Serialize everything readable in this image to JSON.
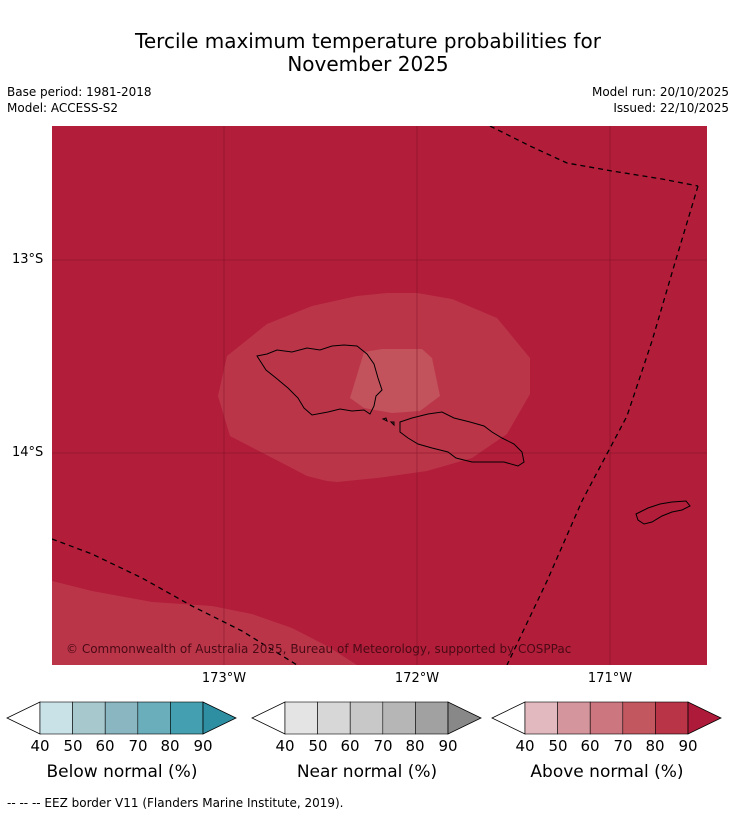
{
  "title_line1": "Tercile maximum temperature probabilities for",
  "title_line2": "November 2025",
  "base_period": "Base period: 1981-2018",
  "model": "Model: ACCESS-S2",
  "model_run": "Model run: 20/10/2025",
  "issued": "Issued: 22/10/2025",
  "lat_labels": [
    "13°S",
    "14°S"
  ],
  "lon_labels": [
    "173°W",
    "172°W",
    "171°W"
  ],
  "copyright": "© Commonwealth of Australia 2025, Bureau of Meteorology, supported by COSPPac",
  "colors": {
    "above_90": "#b21d3a",
    "above_80": "#bb3549",
    "above_70": "#c2525c",
    "land": "#000000",
    "eez": "#000000"
  },
  "colorbars": [
    {
      "label": "Below normal (%)",
      "ticks": [
        "40",
        "50",
        "60",
        "70",
        "80",
        "90"
      ],
      "colors": [
        "#c9e2e7",
        "#a7c8cd",
        "#89b6c1",
        "#6aadbb",
        "#44a0b0",
        "#2e8fa3"
      ]
    },
    {
      "label": "Near normal (%)",
      "ticks": [
        "40",
        "50",
        "60",
        "70",
        "80",
        "90"
      ],
      "colors": [
        "#e4e4e4",
        "#d7d7d7",
        "#c8c8c8",
        "#b6b6b6",
        "#a1a1a1",
        "#888888"
      ]
    },
    {
      "label": "Above normal (%)",
      "ticks": [
        "40",
        "50",
        "60",
        "70",
        "80",
        "90"
      ],
      "colors": [
        "#e1b9bf",
        "#d4959d",
        "#cc7680",
        "#c3575f",
        "#ba3447",
        "#ae1a3a"
      ]
    }
  ],
  "footnote": "-- -- -- EEZ border V11 (Flanders Marine Institute, 2019)."
}
